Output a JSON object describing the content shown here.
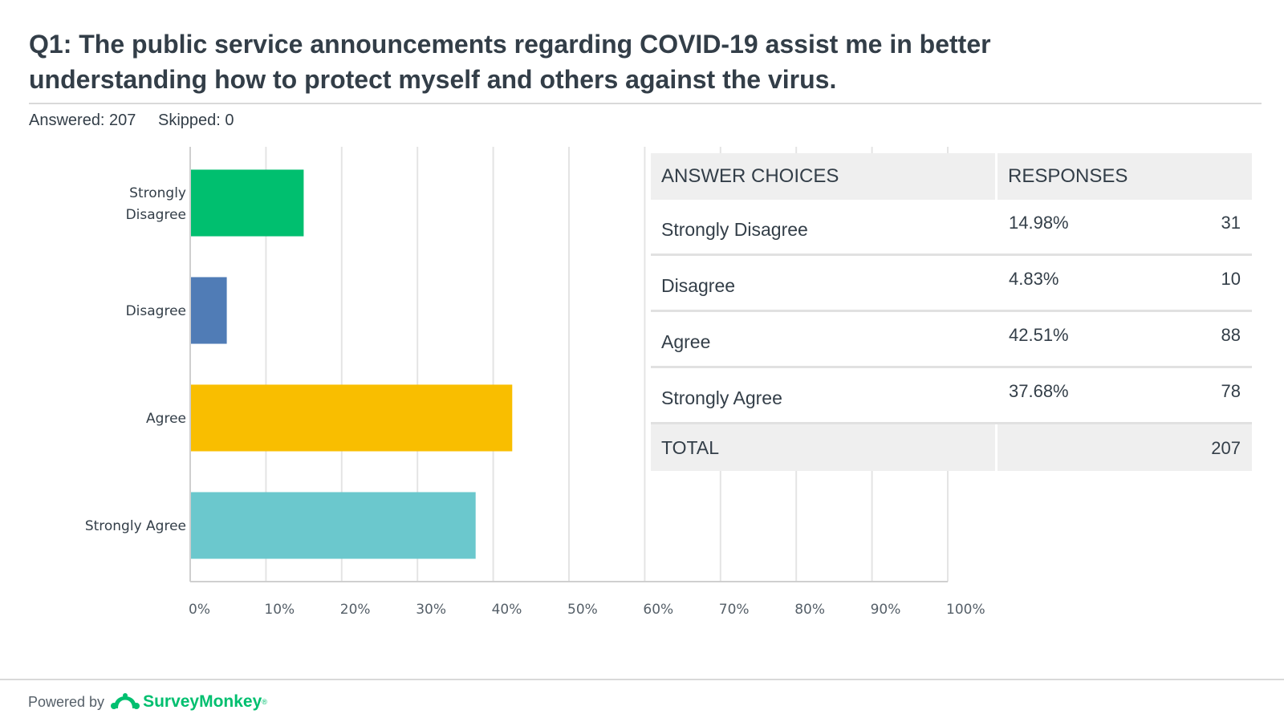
{
  "header": {
    "title": "Q1: The public service announcements regarding COVID-19 assist me in better understanding how to protect myself and others against the virus.",
    "answered": "Answered: 207",
    "skipped": "Skipped: 0"
  },
  "chart_data": {
    "type": "bar",
    "orientation": "horizontal",
    "categories": [
      "Strongly Disagree",
      "Disagree",
      "Agree",
      "Strongly Agree"
    ],
    "values": [
      14.98,
      4.83,
      42.51,
      37.68
    ],
    "colors": [
      "#00bf6f",
      "#507cb6",
      "#f9be00",
      "#6bc8cd"
    ],
    "xlim": [
      0,
      100
    ],
    "xticks": [
      "0%",
      "10%",
      "20%",
      "30%",
      "40%",
      "50%",
      "60%",
      "70%",
      "80%",
      "90%",
      "100%"
    ],
    "grid": true
  },
  "table": {
    "col_choices": "ANSWER CHOICES",
    "col_responses": "RESPONSES",
    "rows": [
      {
        "choice": "Strongly Disagree",
        "pct": "14.98%",
        "count": "31"
      },
      {
        "choice": "Disagree",
        "pct": "4.83%",
        "count": "10"
      },
      {
        "choice": "Agree",
        "pct": "42.51%",
        "count": "88"
      },
      {
        "choice": "Strongly Agree",
        "pct": "37.68%",
        "count": "78"
      }
    ],
    "total_label": "TOTAL",
    "total_count": "207"
  },
  "footer": {
    "powered_by": "Powered by",
    "brand": "SurveyMonkey",
    "brand_mark": "®"
  }
}
